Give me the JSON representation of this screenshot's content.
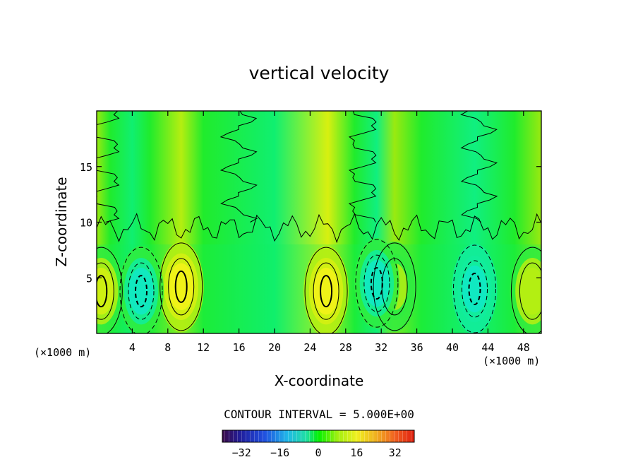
{
  "chart_data": {
    "type": "heatmap",
    "title": "vertical velocity",
    "xlabel": "X-coordinate",
    "ylabel": "Z-coordinate",
    "x_unit_label": "(×1000 m)",
    "x_unit_label_right": "(×1000 m)",
    "xlim": [
      0,
      50
    ],
    "ylim": [
      0,
      20
    ],
    "x_ticks": [
      4,
      8,
      12,
      16,
      20,
      24,
      28,
      32,
      36,
      40,
      44,
      48
    ],
    "x_tick_labels": [
      "4",
      "8",
      "12",
      "16",
      "20",
      "24",
      "28",
      "32",
      "36",
      "40",
      "44",
      "48"
    ],
    "y_ticks": [
      5,
      10,
      15
    ],
    "y_tick_labels": [
      "5",
      "10",
      "15"
    ],
    "contour_interval_text": "CONTOUR INTERVAL = 5.000E+00",
    "colorbar": {
      "range": [
        -40,
        40
      ],
      "ticks": [
        -32,
        -16,
        0,
        16,
        32
      ],
      "tick_labels": [
        "−32",
        "−16",
        "0",
        "16",
        "32"
      ]
    },
    "updrafts": [
      {
        "x": 0.5,
        "z": 3.8,
        "peak": 10
      },
      {
        "x": 9.5,
        "z": 4.2,
        "peak": 14
      },
      {
        "x": 25.8,
        "z": 3.8,
        "peak": 16
      },
      {
        "x": 33.5,
        "z": 4.2,
        "peak": 7
      },
      {
        "x": 49.0,
        "z": 3.8,
        "peak": 8
      }
    ],
    "downdrafts": [
      {
        "x": 5.0,
        "z": 3.8,
        "peak": -10
      },
      {
        "x": 31.5,
        "z": 4.5,
        "peak": -10
      },
      {
        "x": 42.5,
        "z": 4.0,
        "peak": -11
      }
    ]
  }
}
